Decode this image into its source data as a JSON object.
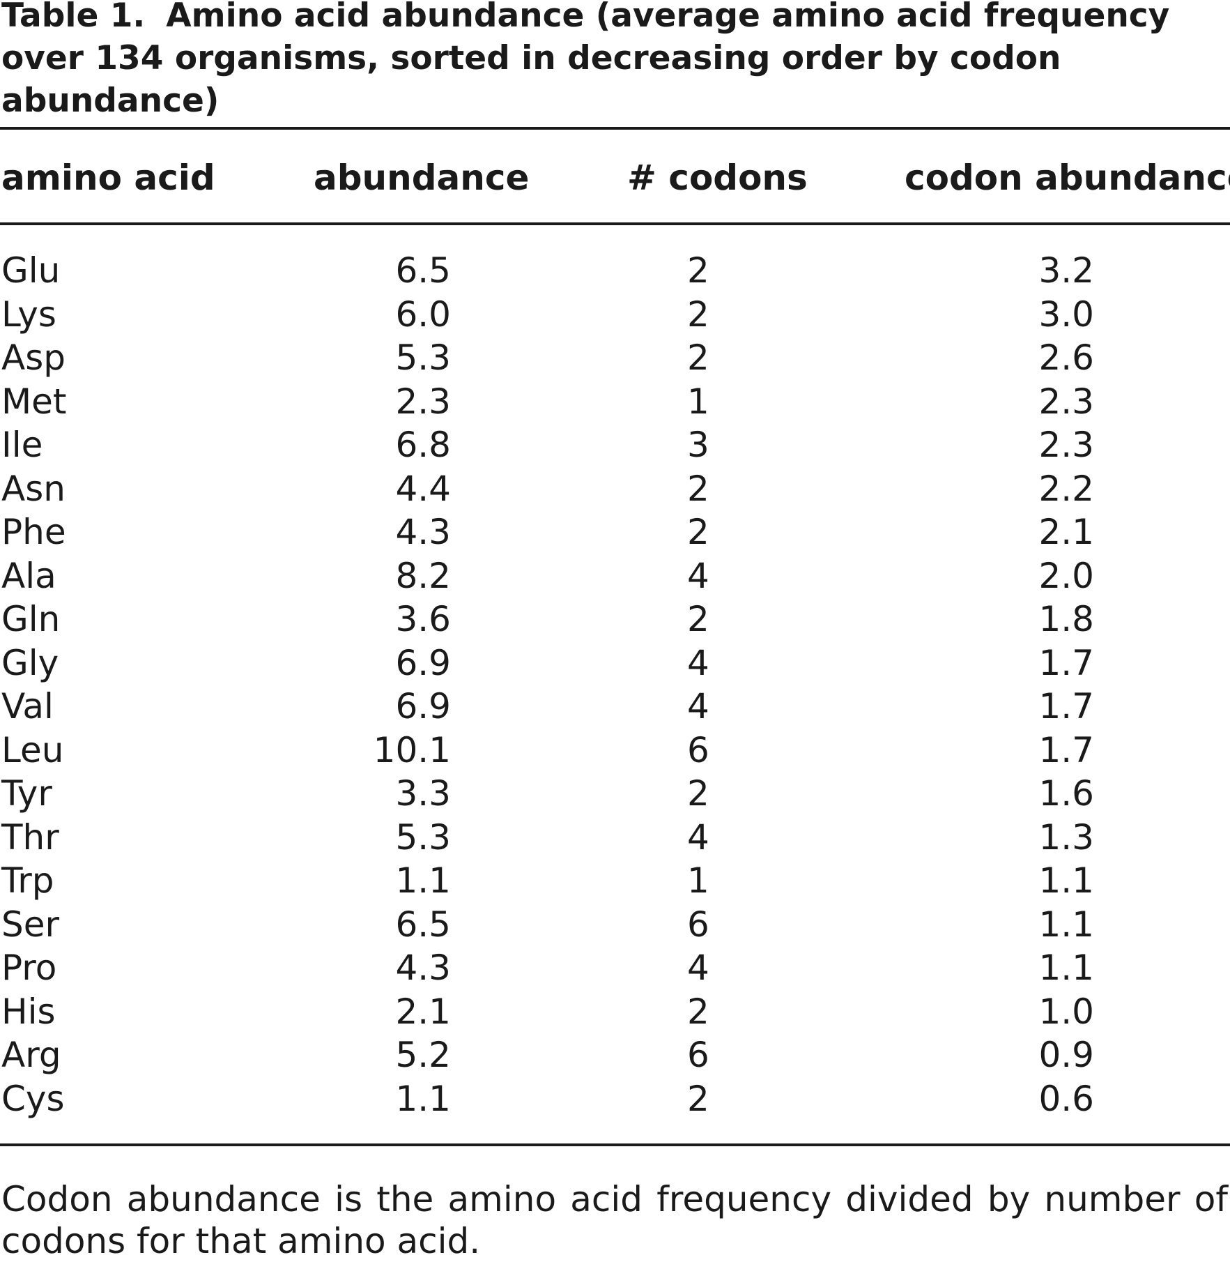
{
  "table": {
    "label": "Table 1.",
    "title": "Amino acid abundance (average amino acid frequency over 134 organisms, sorted in decreasing order by codon abundance)",
    "columns": [
      "amino acid",
      "abundance",
      "# codons",
      "codon abundance"
    ],
    "rows": [
      [
        "Glu",
        "6.5",
        "2",
        "3.2"
      ],
      [
        "Lys",
        "6.0",
        "2",
        "3.0"
      ],
      [
        "Asp",
        "5.3",
        "2",
        "2.6"
      ],
      [
        "Met",
        "2.3",
        "1",
        "2.3"
      ],
      [
        "Ile",
        "6.8",
        "3",
        "2.3"
      ],
      [
        "Asn",
        "4.4",
        "2",
        "2.2"
      ],
      [
        "Phe",
        "4.3",
        "2",
        "2.1"
      ],
      [
        "Ala",
        "8.2",
        "4",
        "2.0"
      ],
      [
        "Gln",
        "3.6",
        "2",
        "1.8"
      ],
      [
        "Gly",
        "6.9",
        "4",
        "1.7"
      ],
      [
        "Val",
        "6.9",
        "4",
        "1.7"
      ],
      [
        "Leu",
        "10.1",
        "6",
        "1.7"
      ],
      [
        "Tyr",
        "3.3",
        "2",
        "1.6"
      ],
      [
        "Thr",
        "5.3",
        "4",
        "1.3"
      ],
      [
        "Trp",
        "1.1",
        "1",
        "1.1"
      ],
      [
        "Ser",
        "6.5",
        "6",
        "1.1"
      ],
      [
        "Pro",
        "4.3",
        "4",
        "1.1"
      ],
      [
        "His",
        "2.1",
        "2",
        "1.0"
      ],
      [
        "Arg",
        "5.2",
        "6",
        "0.9"
      ],
      [
        "Cys",
        "1.1",
        "2",
        "0.6"
      ]
    ],
    "footnote": "Codon abundance is the amino acid frequency divided by number of codons for that amino acid."
  }
}
